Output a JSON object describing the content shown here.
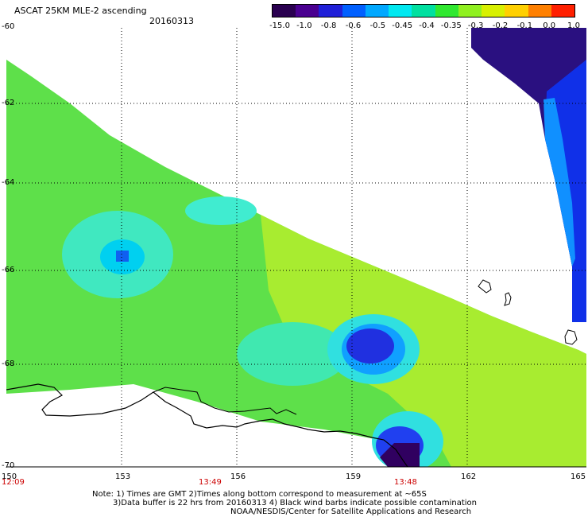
{
  "header": {
    "title": "ASCAT 25KM MLE-2 ascending",
    "date": "20160313"
  },
  "colorbar": {
    "labels": [
      "-15.0",
      "-1.0",
      "-0.8",
      "-0.6",
      "-0.5",
      "-0.45",
      "-0.4",
      "-0.35",
      "-0.3",
      "-0.2",
      "-0.1",
      "0.0",
      "1.0"
    ],
    "colors": [
      "#2a0050",
      "#4a0090",
      "#2020d8",
      "#0060ff",
      "#00a8ff",
      "#00e8f0",
      "#00e0a0",
      "#30e830",
      "#90f020",
      "#d8f000",
      "#ffd000",
      "#ff8000",
      "#ff2000"
    ]
  },
  "axes": {
    "lat_labels": [
      "-60",
      "-62",
      "-64",
      "-66",
      "-68",
      "-70"
    ],
    "lon_labels": [
      "150",
      "153",
      "156",
      "159",
      "162",
      "165"
    ],
    "time_labels": [
      "12:09",
      "13:49",
      "13:48"
    ]
  },
  "notes": {
    "line1": "Note: 1) Times are GMT 2)Times along bottom correspond to measurement at ~65S",
    "line2": "3)Data buffer is 22 hrs from 20160313 4) Black wind barbs indicate possible contamination",
    "line3": "NOAA/NESDIS/Center for Satellite Applications and Research"
  }
}
